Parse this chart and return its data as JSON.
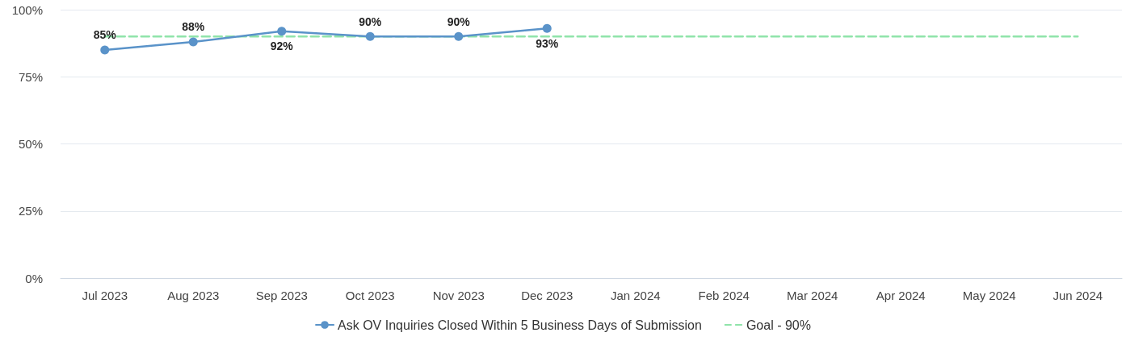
{
  "chart_data": {
    "type": "line",
    "categories": [
      "Jul 2023",
      "Aug 2023",
      "Sep 2023",
      "Oct 2023",
      "Nov 2023",
      "Dec 2023",
      "Jan 2024",
      "Feb 2024",
      "Mar 2024",
      "Apr 2024",
      "May 2024",
      "Jun 2024"
    ],
    "series": [
      {
        "name": "Ask OV Inquiries Closed Within 5 Business Days of Submission",
        "color": "#5a93c9",
        "values": [
          85,
          88,
          92,
          90,
          90,
          93,
          null,
          null,
          null,
          null,
          null,
          null
        ],
        "value_labels": [
          "85%",
          "88%",
          "92%",
          "90%",
          "90%",
          "93%",
          null,
          null,
          null,
          null,
          null,
          null
        ],
        "marker": "circle",
        "line_style": "solid"
      },
      {
        "name": "Goal - 90%",
        "color": "#90e4aa",
        "values": [
          90,
          90,
          90,
          90,
          90,
          90,
          90,
          90,
          90,
          90,
          90,
          90
        ],
        "marker": "none",
        "line_style": "dashed"
      }
    ],
    "ylim": [
      0,
      100
    ],
    "yticks": [
      {
        "value": 0,
        "label": "0%"
      },
      {
        "value": 25,
        "label": "25%"
      },
      {
        "value": 50,
        "label": "50%"
      },
      {
        "value": 75,
        "label": "75%"
      },
      {
        "value": 100,
        "label": "100%"
      }
    ],
    "grid": "y",
    "legend": "bottom"
  }
}
